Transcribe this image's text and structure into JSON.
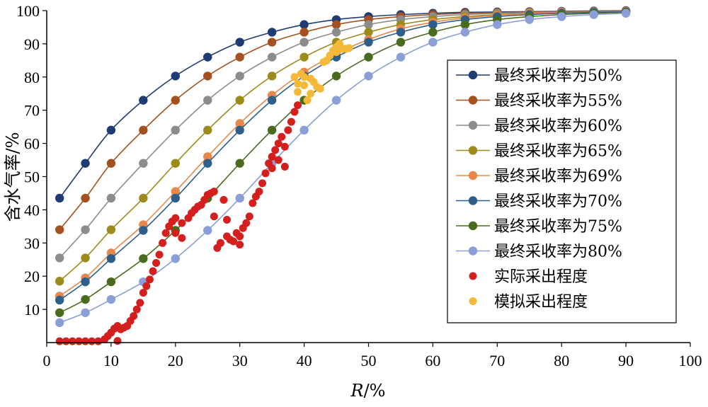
{
  "chart_data": {
    "type": "line",
    "xlabel": "R/%",
    "xlabel_italic": "R",
    "xlabel_rest": "/%",
    "ylabel": "含水气率/%",
    "xlim": [
      0,
      100
    ],
    "ylim": [
      0,
      100
    ],
    "x_ticks": [
      "0",
      "10",
      "20",
      "30",
      "40",
      "50",
      "60",
      "70",
      "80",
      "90",
      "100"
    ],
    "y_ticks": [
      "10",
      "20",
      "30",
      "40",
      "50",
      "60",
      "70",
      "80",
      "90",
      "100"
    ],
    "legend_position": "right",
    "grid": false,
    "curve_x": [
      2,
      6,
      10,
      15,
      20,
      25,
      30,
      35,
      40,
      45,
      50,
      55,
      60,
      65,
      70,
      75,
      80,
      85,
      90
    ],
    "series": [
      {
        "name": "最终采收率为50%",
        "color": "#1f3b73",
        "values": [
          43.5,
          54,
          64,
          73,
          80.3,
          86,
          90.5,
          93.5,
          95.8,
          97.3,
          98.2,
          98.8,
          99.2,
          99.5,
          99.6,
          99.7,
          99.8,
          99.9,
          100
        ]
      },
      {
        "name": "最终采收率为55%",
        "color": "#a5501f",
        "values": [
          34,
          43.5,
          54,
          64,
          73,
          80.3,
          86,
          90.5,
          93.5,
          95.8,
          97.3,
          98.2,
          98.8,
          99.2,
          99.4,
          99.6,
          99.7,
          99.8,
          99.9
        ]
      },
      {
        "name": "最终采收率为60%",
        "color": "#8c8c8c",
        "values": [
          25.5,
          34,
          43.5,
          54,
          64,
          73,
          80.3,
          86,
          90.5,
          93.5,
          95.8,
          97.3,
          98.2,
          98.8,
          99.2,
          99.4,
          99.6,
          99.7,
          99.8
        ]
      },
      {
        "name": "最终采收率为65%",
        "color": "#9c8a1b",
        "values": [
          18.5,
          25.5,
          34,
          43.5,
          54,
          64,
          73,
          80.3,
          86,
          90.5,
          93.5,
          95.8,
          97.3,
          98.2,
          98.8,
          99.2,
          99.4,
          99.6,
          99.7
        ]
      },
      {
        "name": "最终采收率为69%",
        "color": "#e8874a",
        "values": [
          14,
          19.5,
          27,
          35.5,
          45.5,
          56,
          66,
          74.5,
          81.5,
          87,
          91.3,
          94.5,
          96.5,
          97.8,
          98.6,
          99.1,
          99.4,
          99.6,
          99.7
        ]
      },
      {
        "name": "最终采收率为70%",
        "color": "#2e5f8a",
        "values": [
          12.8,
          18.3,
          25.3,
          33.8,
          43.5,
          54,
          64,
          73,
          80.3,
          86,
          90.5,
          93.5,
          95.8,
          97.3,
          98.2,
          98.8,
          99.2,
          99.5,
          99.6
        ]
      },
      {
        "name": "最终采收率为75%",
        "color": "#4a6b1e",
        "values": [
          9,
          13,
          18.3,
          25.3,
          33.8,
          43.5,
          54,
          64,
          73,
          80.3,
          86,
          90.5,
          93.5,
          95.8,
          97.3,
          98.2,
          98.8,
          99.2,
          99.5
        ]
      },
      {
        "name": "最终采收率为80%",
        "color": "#8a9fd8",
        "values": [
          6,
          9,
          13,
          18.3,
          25.3,
          33.8,
          43.5,
          54,
          64,
          73,
          80.3,
          86,
          90.5,
          93.5,
          95.8,
          97.3,
          98.2,
          98.8,
          99.2
        ]
      }
    ],
    "scatter_series": [
      {
        "name": "实际采出程度",
        "color": "#d41f1f",
        "points": [
          [
            2,
            0.4
          ],
          [
            3,
            0.4
          ],
          [
            4,
            0.4
          ],
          [
            5,
            0.4
          ],
          [
            6,
            0.4
          ],
          [
            7,
            0.4
          ],
          [
            8,
            0.4
          ],
          [
            9,
            1
          ],
          [
            9.5,
            2
          ],
          [
            10,
            3
          ],
          [
            10.5,
            4.2
          ],
          [
            11,
            5
          ],
          [
            11,
            0.5
          ],
          [
            11.5,
            4
          ],
          [
            12,
            4.5
          ],
          [
            12.5,
            5
          ],
          [
            13,
            6.5
          ],
          [
            13.5,
            8
          ],
          [
            14,
            10
          ],
          [
            14.5,
            12
          ],
          [
            15,
            15
          ],
          [
            15.5,
            17
          ],
          [
            16,
            19
          ],
          [
            16.5,
            21.5
          ],
          [
            17,
            24
          ],
          [
            17.5,
            26.5
          ],
          [
            18,
            30
          ],
          [
            18.5,
            33
          ],
          [
            19,
            35
          ],
          [
            19.5,
            36.5
          ],
          [
            20,
            37.5
          ],
          [
            20,
            33
          ],
          [
            21,
            36
          ],
          [
            21,
            31.5
          ],
          [
            22,
            37.5
          ],
          [
            22.5,
            39
          ],
          [
            23,
            40
          ],
          [
            23.5,
            41
          ],
          [
            24,
            41.5
          ],
          [
            24.5,
            43
          ],
          [
            25,
            44.5
          ],
          [
            25.5,
            45
          ],
          [
            26,
            45.5
          ],
          [
            26,
            38
          ],
          [
            26.5,
            28.5
          ],
          [
            27,
            30
          ],
          [
            27.5,
            43
          ],
          [
            28,
            37
          ],
          [
            28,
            32
          ],
          [
            28.5,
            31
          ],
          [
            29,
            30.5
          ],
          [
            29.5,
            33
          ],
          [
            30,
            32
          ],
          [
            30,
            29.5
          ],
          [
            30.5,
            34.5
          ],
          [
            31,
            36
          ],
          [
            31.5,
            38
          ],
          [
            32,
            42
          ],
          [
            32.5,
            44
          ],
          [
            33,
            45.5
          ],
          [
            33.5,
            48
          ],
          [
            34,
            51
          ],
          [
            34.5,
            54
          ],
          [
            35,
            56
          ],
          [
            35.5,
            58
          ],
          [
            35,
            52.5
          ],
          [
            36,
            60
          ],
          [
            36.5,
            62
          ],
          [
            37,
            59
          ],
          [
            37.5,
            64
          ],
          [
            38,
            66.5
          ],
          [
            38.5,
            69.5
          ],
          [
            39,
            71.5
          ],
          [
            37,
            53
          ],
          [
            36,
            55
          ]
        ]
      },
      {
        "name": "模拟采出程度",
        "color": "#f5b93a",
        "points": [
          [
            38.5,
            80
          ],
          [
            39,
            78
          ],
          [
            39,
            75.5
          ],
          [
            39.5,
            81
          ],
          [
            40,
            80
          ],
          [
            40,
            77.5
          ],
          [
            40.5,
            73
          ],
          [
            41,
            79.5
          ],
          [
            41,
            75
          ],
          [
            41.5,
            78.5
          ],
          [
            42,
            77
          ],
          [
            42.5,
            76.5
          ],
          [
            43,
            84.5
          ],
          [
            43.5,
            85
          ],
          [
            44,
            86.5
          ],
          [
            44.5,
            88
          ],
          [
            45,
            89
          ],
          [
            45.5,
            90
          ],
          [
            45,
            87.5
          ],
          [
            46,
            88.5
          ],
          [
            46.5,
            88.5
          ],
          [
            47,
            88.7
          ]
        ]
      }
    ]
  }
}
